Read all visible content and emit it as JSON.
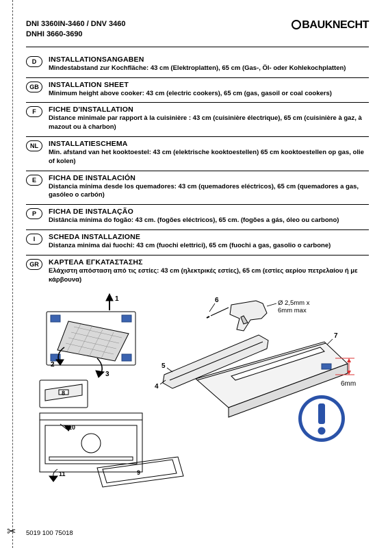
{
  "header": {
    "model1": "DNI 3360IN-3460 / DNV 3460",
    "model2": "DNHI 3660-3690",
    "brand": "BAUKNECHT"
  },
  "langs": [
    {
      "code": "D",
      "title": "INSTALLATIONSANGABEN",
      "body": "Mindestabstand zur Kochfläche: 43 cm (Elektroplatten), 65 cm (Gas-, Öl- oder Kohlekochplatten)"
    },
    {
      "code": "GB",
      "title": "INSTALLATION SHEET",
      "body": "Minimum height above cooker: 43 cm (electric cookers), 65 cm (gas, gasoil or coal cookers)"
    },
    {
      "code": "F",
      "title": "FICHE D'INSTALLATION",
      "body": "Distance minimale par rapport à la cuisinière : 43 cm (cuisinière électrique), 65 cm (cuisinière à gaz, à mazout ou à charbon)"
    },
    {
      "code": "NL",
      "title": "INSTALLATIESCHEMA",
      "body": "Min. afstand van het kooktoestel: 43 cm (elektrische kooktoestellen) 65 cm kooktoestellen op gas, olie of kolen)"
    },
    {
      "code": "E",
      "title": "FICHA DE INSTALACIÓN",
      "body": "Distancia mínima desde los quemadores: 43 cm (quemadores eléctricos), 65 cm (quemadores a gas, gasóleo o carbón)"
    },
    {
      "code": "P",
      "title": "FICHA DE INSTALAÇÃO",
      "body": "Distância mínima do fogão: 43 cm. (fogões eléctricos), 65 cm. (fogões a gás, óleo ou carbono)"
    },
    {
      "code": "I",
      "title": "SCHEDA INSTALLAZIONE",
      "body": "Distanza minima dai fuochi: 43 cm (fuochi elettrici), 65 cm (fuochi a gas, gasolio o carbone)"
    },
    {
      "code": "GR",
      "title": "ΚΑΡΤΕΛΑ ΕΓΚΑΤΑΣΤΑΣΗΣ",
      "body": "Ελάχιστη απόσταση από τις εστίες: 43 cm (ηλεκτρικές εστίες), 65 cm (εστίες αερίου πετρελαίου ή με κάρβουνα)"
    }
  ],
  "labels": {
    "n1": "1",
    "n2": "2",
    "n3": "3",
    "n4": "4",
    "n5": "5",
    "n6": "6",
    "n7": "7",
    "n8": "8",
    "n9": "9",
    "n10": "10",
    "n11": "11",
    "drill": "Ø 2,5mm x 6mm max",
    "gap": "6mm"
  },
  "footer": {
    "code": "5019 100 75018"
  }
}
